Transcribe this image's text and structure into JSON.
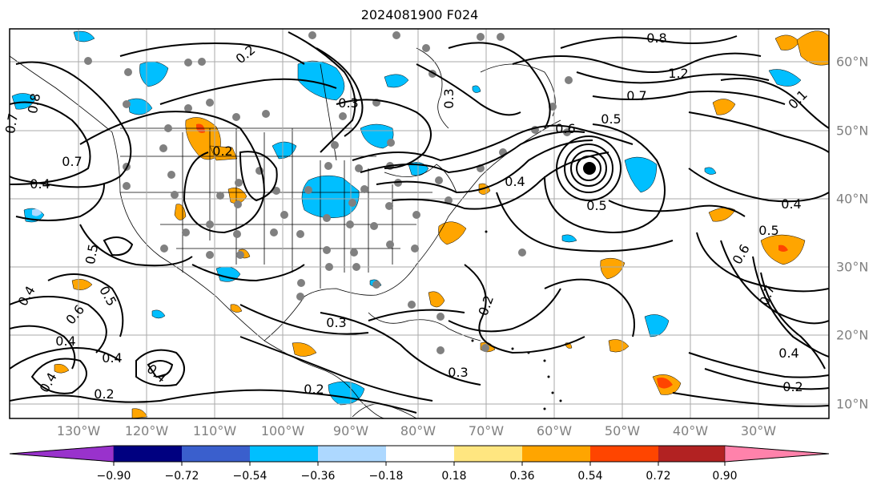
{
  "title": "2024081900 F024",
  "longitude_labels": [
    "130°W",
    "120°W",
    "110°W",
    "100°W",
    "90°W",
    "80°W",
    "70°W",
    "60°W",
    "50°W",
    "40°W",
    "30°W"
  ],
  "latitude_labels": [
    "60°N",
    "50°N",
    "40°N",
    "30°N",
    "20°N",
    "10°N"
  ],
  "contour_labels": [
    "0.2",
    "0.3",
    "0.4",
    "0.5",
    "0.6",
    "0.7",
    "0.8",
    "1.2",
    "0.1"
  ],
  "colorbar": {
    "ticks": [
      "−0.90",
      "−0.72",
      "−0.54",
      "−0.36",
      "−0.18",
      "0.18",
      "0.36",
      "0.54",
      "0.72",
      "0.90"
    ],
    "colors": [
      "#9932cc",
      "#000080",
      "#3a5fcd",
      "#00bfff",
      "#add8ff",
      "#ffffff",
      "#ffe680",
      "#ffa500",
      "#ff4500",
      "#b22222",
      "#ff82ab"
    ],
    "extend": "both"
  },
  "colors": {
    "positive_shading": "#ffa500",
    "negative_shading": "#00bfff",
    "contours": "#000000",
    "stations": "#808080",
    "axis_labels": "#808080"
  }
}
